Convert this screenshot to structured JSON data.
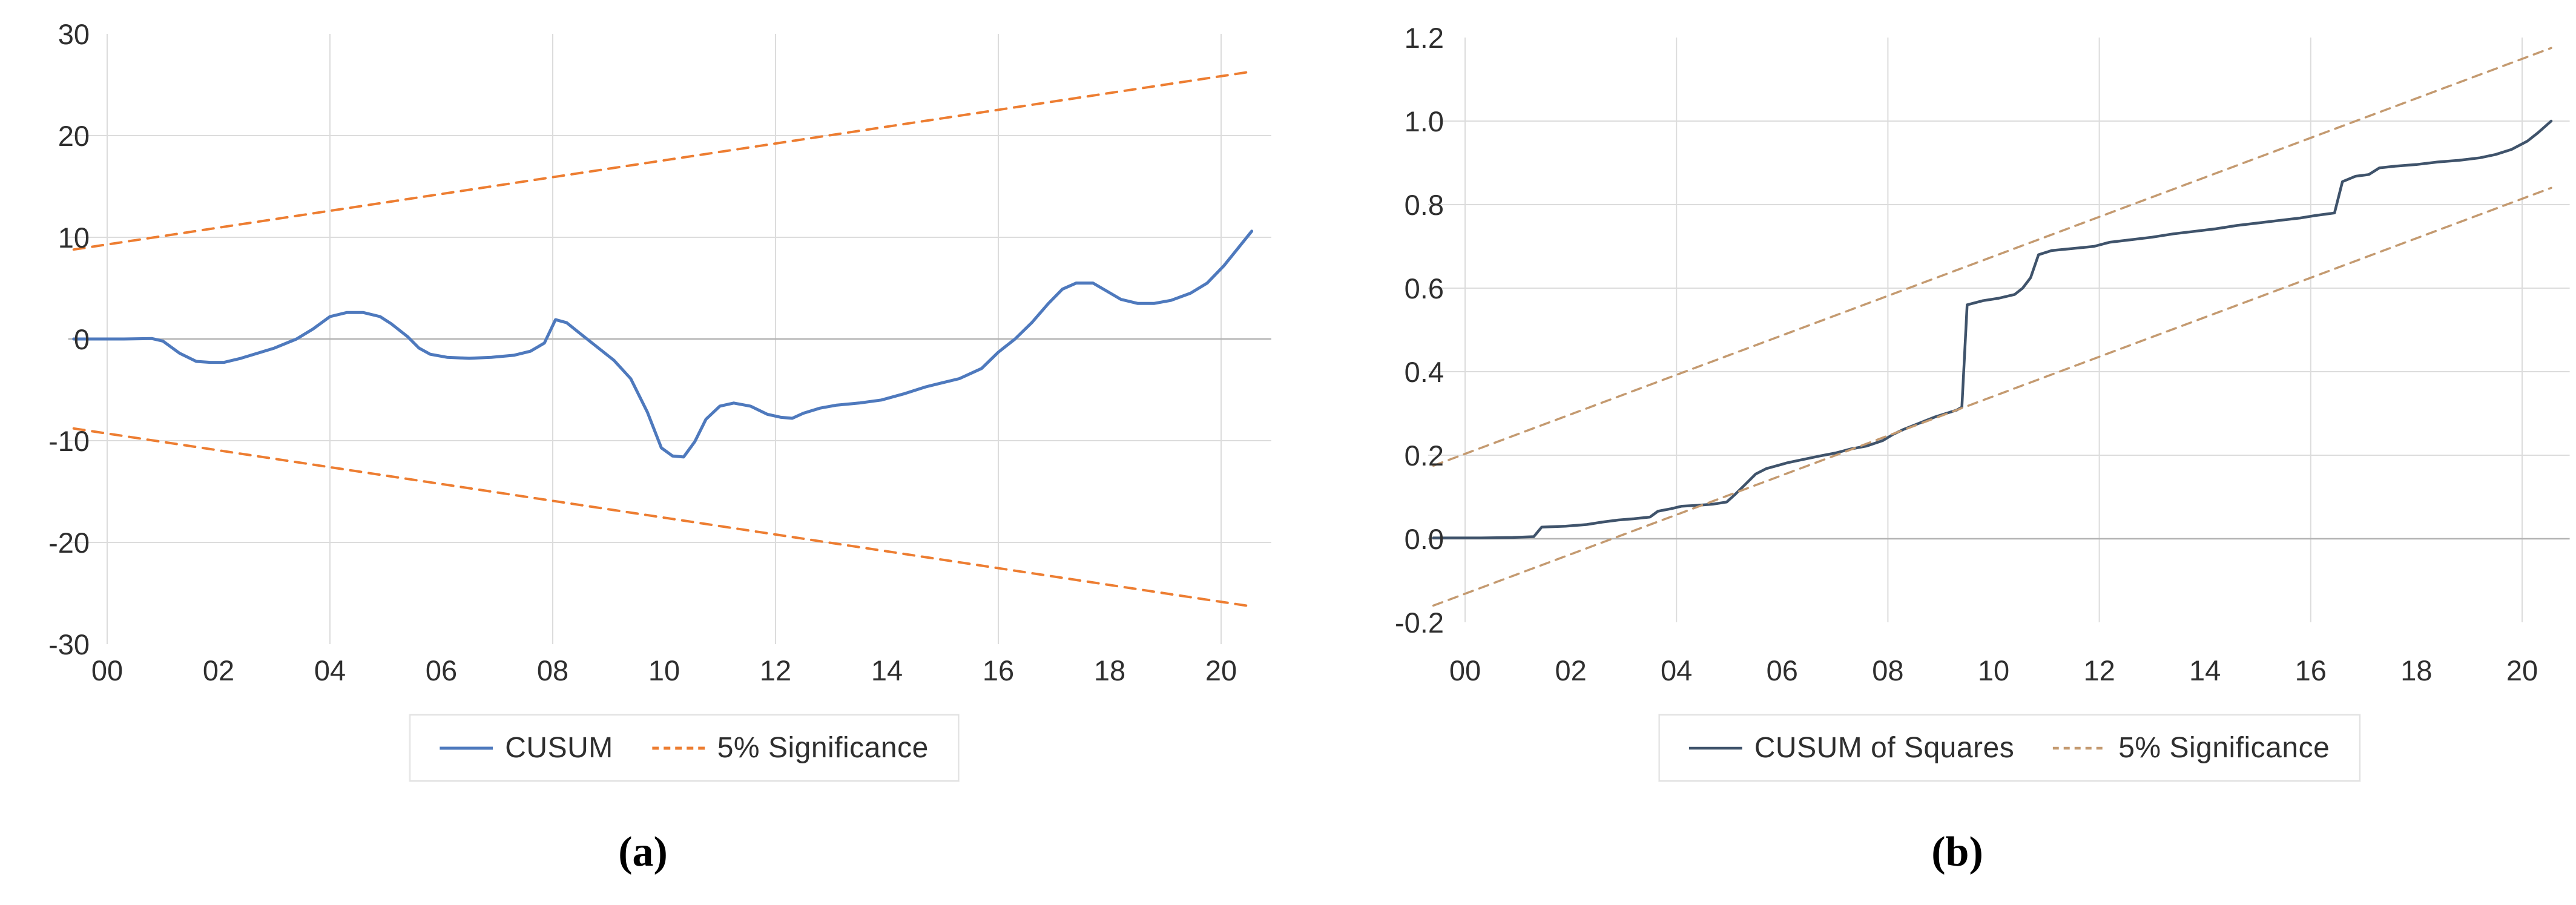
{
  "figure": {
    "panels": [
      {
        "caption": "(a)",
        "legend": [
          {
            "label": "CUSUM",
            "style": "solid",
            "color": "#4e79bd"
          },
          {
            "label": "5% Significance",
            "style": "dashed",
            "color": "#ed7d31"
          }
        ]
      },
      {
        "caption": "(b)",
        "legend": [
          {
            "label": "CUSUM of Squares",
            "style": "solid",
            "color": "#3f536b"
          },
          {
            "label": "5% Significance",
            "style": "dashed",
            "color": "#c49a70"
          }
        ]
      }
    ]
  },
  "chart_data": [
    {
      "type": "line",
      "title": "CUSUM test",
      "xlabel": "",
      "ylabel": "",
      "x_range": [
        -0.7,
        20.9
      ],
      "y_range": [
        -30,
        30
      ],
      "grid": true,
      "legend_position": "bottom",
      "x_gridlines": [
        0,
        4,
        8,
        12,
        16,
        20
      ],
      "y_gridlines": [
        20,
        10,
        -10,
        -20
      ],
      "zero_line": 0,
      "x_ticks": [
        {
          "v": 0,
          "label": "00"
        },
        {
          "v": 2,
          "label": "02"
        },
        {
          "v": 4,
          "label": "04"
        },
        {
          "v": 6,
          "label": "06"
        },
        {
          "v": 8,
          "label": "08"
        },
        {
          "v": 10,
          "label": "10"
        },
        {
          "v": 12,
          "label": "12"
        },
        {
          "v": 14,
          "label": "14"
        },
        {
          "v": 16,
          "label": "16"
        },
        {
          "v": 18,
          "label": "18"
        },
        {
          "v": 20,
          "label": "20"
        }
      ],
      "y_ticks": [
        {
          "v": 30,
          "label": "30"
        },
        {
          "v": 20,
          "label": "20"
        },
        {
          "v": 10,
          "label": "10"
        },
        {
          "v": 0,
          "label": "0"
        },
        {
          "v": -10,
          "label": "-10"
        },
        {
          "v": -20,
          "label": "-20"
        },
        {
          "v": -30,
          "label": "-30"
        }
      ],
      "series": [
        {
          "name": "CUSUM",
          "color": "#4e79bd",
          "width": 5,
          "dash": "solid",
          "points": [
            [
              -0.6,
              0
            ],
            [
              0.3,
              0
            ],
            [
              0.8,
              0.05
            ],
            [
              1.0,
              -0.2
            ],
            [
              1.3,
              -1.4
            ],
            [
              1.6,
              -2.2
            ],
            [
              1.85,
              -2.3
            ],
            [
              2.1,
              -2.3
            ],
            [
              2.4,
              -1.9
            ],
            [
              2.7,
              -1.4
            ],
            [
              3.0,
              -0.9
            ],
            [
              3.4,
              0.0
            ],
            [
              3.7,
              1.0
            ],
            [
              4.0,
              2.2
            ],
            [
              4.3,
              2.6
            ],
            [
              4.6,
              2.6
            ],
            [
              4.9,
              2.2
            ],
            [
              5.1,
              1.5
            ],
            [
              5.4,
              0.2
            ],
            [
              5.6,
              -0.9
            ],
            [
              5.8,
              -1.5
            ],
            [
              6.1,
              -1.8
            ],
            [
              6.5,
              -1.9
            ],
            [
              6.9,
              -1.8
            ],
            [
              7.3,
              -1.6
            ],
            [
              7.6,
              -1.2
            ],
            [
              7.85,
              -0.4
            ],
            [
              8.05,
              1.9
            ],
            [
              8.25,
              1.6
            ],
            [
              8.5,
              0.5
            ],
            [
              8.8,
              -0.8
            ],
            [
              9.1,
              -2.1
            ],
            [
              9.4,
              -3.9
            ],
            [
              9.7,
              -7.2
            ],
            [
              9.95,
              -10.7
            ],
            [
              10.15,
              -11.5
            ],
            [
              10.35,
              -11.6
            ],
            [
              10.55,
              -10.1
            ],
            [
              10.75,
              -7.9
            ],
            [
              11.0,
              -6.6
            ],
            [
              11.25,
              -6.3
            ],
            [
              11.55,
              -6.6
            ],
            [
              11.85,
              -7.4
            ],
            [
              12.1,
              -7.7
            ],
            [
              12.3,
              -7.8
            ],
            [
              12.5,
              -7.3
            ],
            [
              12.8,
              -6.8
            ],
            [
              13.1,
              -6.5
            ],
            [
              13.5,
              -6.3
            ],
            [
              13.9,
              -6.0
            ],
            [
              14.3,
              -5.4
            ],
            [
              14.7,
              -4.7
            ],
            [
              15.0,
              -4.3
            ],
            [
              15.3,
              -3.9
            ],
            [
              15.7,
              -2.9
            ],
            [
              16.0,
              -1.3
            ],
            [
              16.3,
              0.0
            ],
            [
              16.6,
              1.6
            ],
            [
              16.9,
              3.5
            ],
            [
              17.15,
              4.9
            ],
            [
              17.4,
              5.5
            ],
            [
              17.7,
              5.5
            ],
            [
              17.95,
              4.7
            ],
            [
              18.2,
              3.9
            ],
            [
              18.5,
              3.5
            ],
            [
              18.8,
              3.5
            ],
            [
              19.1,
              3.8
            ],
            [
              19.45,
              4.5
            ],
            [
              19.75,
              5.5
            ],
            [
              20.05,
              7.2
            ],
            [
              20.3,
              8.9
            ],
            [
              20.55,
              10.6
            ]
          ]
        },
        {
          "name": "5% Significance upper",
          "color": "#ed7d31",
          "width": 4,
          "dash": "dashed",
          "points": [
            [
              -0.6,
              8.8
            ],
            [
              20.55,
              26.3
            ]
          ]
        },
        {
          "name": "5% Significance lower",
          "color": "#ed7d31",
          "width": 4,
          "dash": "dashed",
          "points": [
            [
              -0.6,
              -8.8
            ],
            [
              20.55,
              -26.3
            ]
          ]
        }
      ]
    },
    {
      "type": "line",
      "title": "CUSUM of Squares test",
      "xlabel": "",
      "ylabel": "",
      "x_range": [
        -0.7,
        20.9
      ],
      "y_range": [
        -0.2,
        1.2
      ],
      "grid": true,
      "legend_position": "bottom",
      "x_gridlines": [
        0,
        4,
        8,
        12,
        16,
        20
      ],
      "y_gridlines": [
        1.0,
        0.8,
        0.6,
        0.4,
        0.2
      ],
      "zero_line": 0.0,
      "x_ticks": [
        {
          "v": 0,
          "label": "00"
        },
        {
          "v": 2,
          "label": "02"
        },
        {
          "v": 4,
          "label": "04"
        },
        {
          "v": 6,
          "label": "06"
        },
        {
          "v": 8,
          "label": "08"
        },
        {
          "v": 10,
          "label": "10"
        },
        {
          "v": 12,
          "label": "12"
        },
        {
          "v": 14,
          "label": "14"
        },
        {
          "v": 16,
          "label": "16"
        },
        {
          "v": 18,
          "label": "18"
        },
        {
          "v": 20,
          "label": "20"
        }
      ],
      "y_ticks": [
        {
          "v": 1.2,
          "label": "1.2"
        },
        {
          "v": 1.0,
          "label": "1.0"
        },
        {
          "v": 0.8,
          "label": "0.8"
        },
        {
          "v": 0.6,
          "label": "0.6"
        },
        {
          "v": 0.4,
          "label": "0.4"
        },
        {
          "v": 0.2,
          "label": "0.2"
        },
        {
          "v": 0.0,
          "label": "0.0"
        },
        {
          "v": -0.2,
          "label": "-0.2"
        }
      ],
      "series": [
        {
          "name": "CUSUM of Squares",
          "color": "#3f536b",
          "width": 4.5,
          "dash": "solid",
          "points": [
            [
              -0.6,
              0.002
            ],
            [
              0.3,
              0.002
            ],
            [
              0.9,
              0.003
            ],
            [
              1.3,
              0.005
            ],
            [
              1.45,
              0.028
            ],
            [
              1.9,
              0.03
            ],
            [
              2.3,
              0.034
            ],
            [
              2.6,
              0.04
            ],
            [
              2.9,
              0.045
            ],
            [
              3.2,
              0.048
            ],
            [
              3.5,
              0.052
            ],
            [
              3.65,
              0.066
            ],
            [
              3.9,
              0.072
            ],
            [
              4.1,
              0.078
            ],
            [
              4.4,
              0.08
            ],
            [
              4.7,
              0.083
            ],
            [
              4.95,
              0.088
            ],
            [
              5.1,
              0.105
            ],
            [
              5.3,
              0.13
            ],
            [
              5.5,
              0.155
            ],
            [
              5.7,
              0.168
            ],
            [
              5.9,
              0.175
            ],
            [
              6.1,
              0.182
            ],
            [
              6.4,
              0.19
            ],
            [
              6.7,
              0.198
            ],
            [
              7.0,
              0.205
            ],
            [
              7.3,
              0.215
            ],
            [
              7.6,
              0.222
            ],
            [
              7.9,
              0.235
            ],
            [
              8.1,
              0.25
            ],
            [
              8.3,
              0.262
            ],
            [
              8.5,
              0.272
            ],
            [
              8.7,
              0.282
            ],
            [
              8.9,
              0.292
            ],
            [
              9.1,
              0.3
            ],
            [
              9.3,
              0.308
            ],
            [
              9.4,
              0.315
            ],
            [
              9.5,
              0.56
            ],
            [
              9.8,
              0.57
            ],
            [
              10.1,
              0.576
            ],
            [
              10.4,
              0.585
            ],
            [
              10.55,
              0.6
            ],
            [
              10.7,
              0.625
            ],
            [
              10.85,
              0.68
            ],
            [
              11.1,
              0.69
            ],
            [
              11.5,
              0.695
            ],
            [
              11.9,
              0.7
            ],
            [
              12.2,
              0.71
            ],
            [
              12.6,
              0.716
            ],
            [
              13.0,
              0.722
            ],
            [
              13.4,
              0.73
            ],
            [
              13.8,
              0.736
            ],
            [
              14.2,
              0.742
            ],
            [
              14.6,
              0.75
            ],
            [
              15.0,
              0.756
            ],
            [
              15.4,
              0.762
            ],
            [
              15.8,
              0.768
            ],
            [
              16.1,
              0.774
            ],
            [
              16.45,
              0.78
            ],
            [
              16.6,
              0.855
            ],
            [
              16.85,
              0.868
            ],
            [
              17.1,
              0.872
            ],
            [
              17.3,
              0.888
            ],
            [
              17.6,
              0.892
            ],
            [
              18.0,
              0.896
            ],
            [
              18.4,
              0.902
            ],
            [
              18.8,
              0.906
            ],
            [
              19.2,
              0.912
            ],
            [
              19.5,
              0.92
            ],
            [
              19.8,
              0.932
            ],
            [
              20.1,
              0.952
            ],
            [
              20.3,
              0.972
            ],
            [
              20.55,
              1.0
            ]
          ]
        },
        {
          "name": "5% Significance upper",
          "color": "#c49a70",
          "width": 3.5,
          "dash": "dashed",
          "points": [
            [
              -0.6,
              0.175
            ],
            [
              20.55,
              1.175
            ]
          ]
        },
        {
          "name": "5% Significance lower",
          "color": "#c49a70",
          "width": 3.5,
          "dash": "dashed",
          "points": [
            [
              -0.6,
              -0.16
            ],
            [
              20.55,
              0.84
            ]
          ]
        }
      ]
    }
  ]
}
